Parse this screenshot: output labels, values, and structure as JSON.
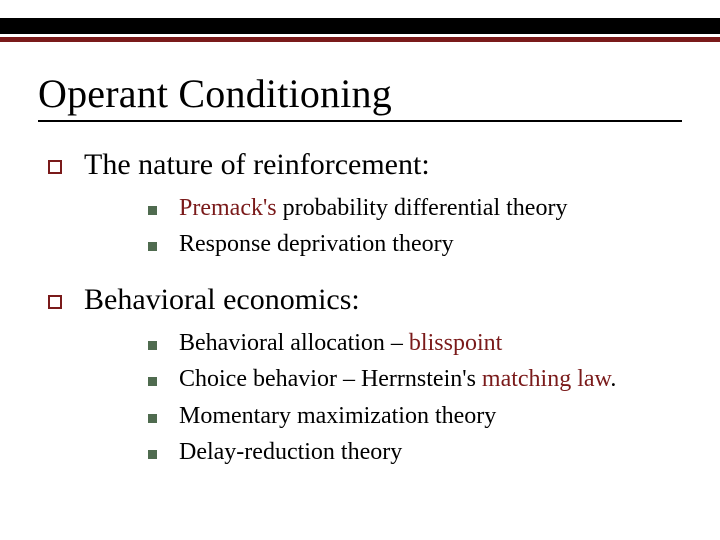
{
  "colors": {
    "accent": "#7a1a1a",
    "bullet_square_border": "#7a1a1a",
    "bullet_square_fill": "#4f6b4f",
    "text": "#000000",
    "background": "#ffffff",
    "underline": "#000000",
    "bar_thick": "#000000",
    "bar_thin": "#7a1a1a"
  },
  "title": "Operant Conditioning",
  "fontsizes": {
    "title": 40,
    "lvl1": 30,
    "lvl2": 24
  },
  "sections": [
    {
      "label": "The nature of reinforcement:",
      "items": [
        {
          "runs": [
            {
              "text": "Premack's",
              "accent": true
            },
            {
              "text": " probability differential theory",
              "accent": false
            }
          ]
        },
        {
          "runs": [
            {
              "text": "Response deprivation theory",
              "accent": false
            }
          ]
        }
      ]
    },
    {
      "label": "Behavioral economics:",
      "items": [
        {
          "runs": [
            {
              "text": "Behavioral allocation – ",
              "accent": false
            },
            {
              "text": "blisspoint",
              "accent": true
            }
          ]
        },
        {
          "runs": [
            {
              "text": "Choice behavior – Herrnstein's ",
              "accent": false
            },
            {
              "text": "matching law",
              "accent": true
            },
            {
              "text": ".",
              "accent": false
            }
          ]
        },
        {
          "runs": [
            {
              "text": "Momentary maximization theory",
              "accent": false
            }
          ]
        },
        {
          "runs": [
            {
              "text": "Delay-reduction theory",
              "accent": false
            }
          ]
        }
      ]
    }
  ]
}
